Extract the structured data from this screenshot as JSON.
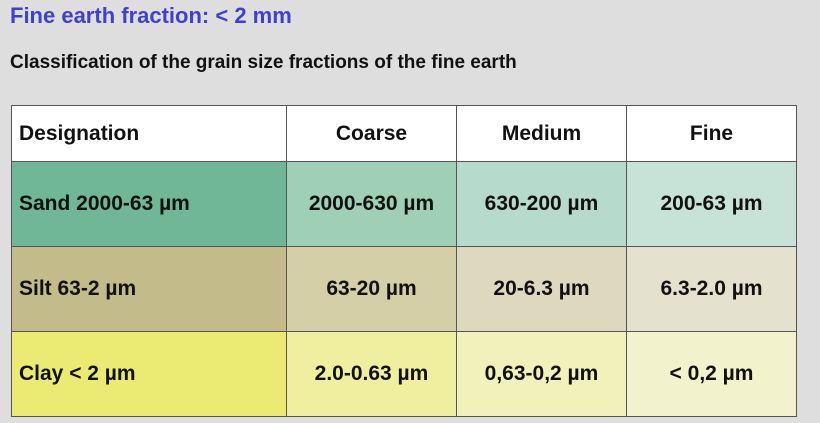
{
  "title": "Fine earth fraction: < 2 mm",
  "subtitle": "Classification of the grain size fractions of the fine earth",
  "table": {
    "headers": [
      "Designation",
      "Coarse",
      "Medium",
      "Fine"
    ],
    "rows": [
      {
        "cells": [
          "Sand 2000-63 µm",
          "2000-630 µm",
          "630-200 µm",
          "200-63 µm"
        ]
      },
      {
        "cells": [
          "Silt 63-2 µm",
          "63-20 µm",
          "20-6.3 µm",
          "6.3-2.0 µm"
        ]
      },
      {
        "cells": [
          "Clay < 2 µm",
          "2.0-0.63 µm",
          "0,63-0,2 µm",
          "< 0,2 µm"
        ]
      }
    ]
  },
  "colors": {
    "title": "#3f3fd0",
    "sand": [
      "#6fb797",
      "#9fd0b6",
      "#b6dacb",
      "#c7e2d6"
    ],
    "silt": [
      "#c3bb8a",
      "#d4cfa7",
      "#ddd9bf",
      "#e4e2cf"
    ],
    "clay": [
      "#ebeb74",
      "#efef9f",
      "#f1f1bb",
      "#f2f2cc"
    ]
  }
}
